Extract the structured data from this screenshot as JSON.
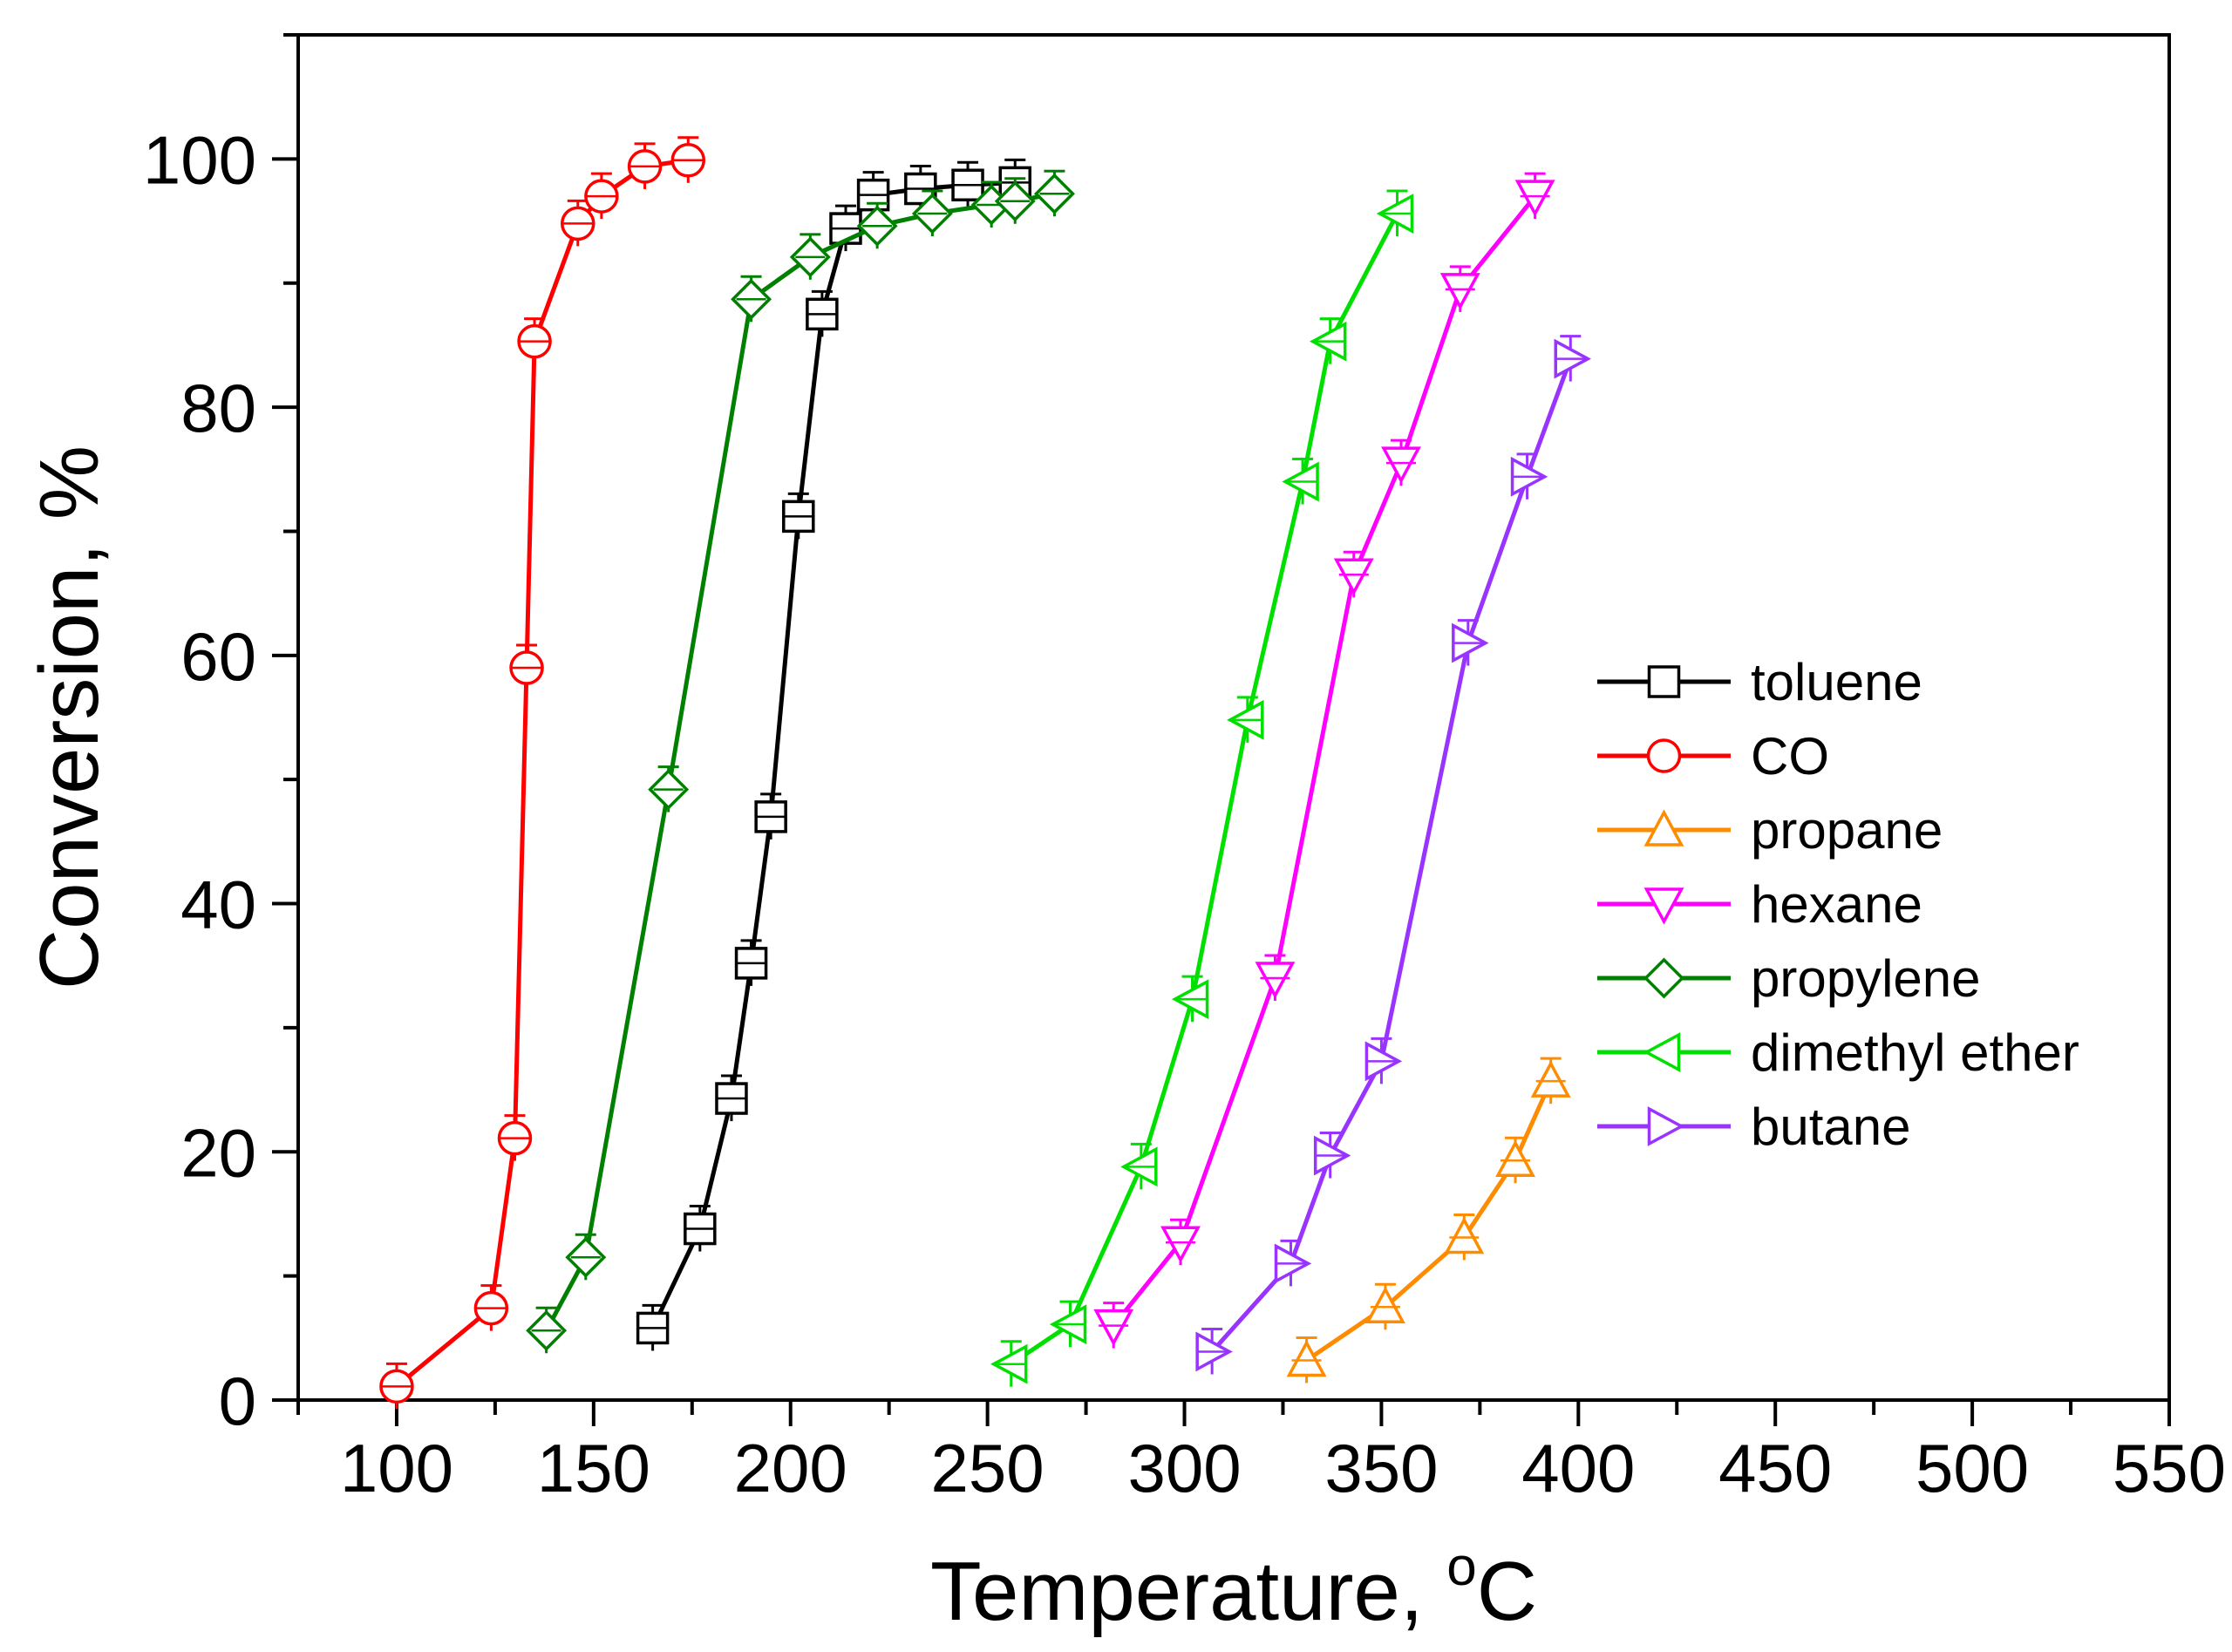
{
  "chart_data": {
    "type": "line",
    "title": "",
    "xlabel": "Temperature, ",
    "xlabel_unit": "C",
    "xlabel_unit_super": "o",
    "ylabel": "Conversion, %",
    "xlim": [
      75,
      550
    ],
    "ylim": [
      0,
      110
    ],
    "x_ticks": [
      100,
      150,
      200,
      250,
      300,
      350,
      400,
      450,
      500,
      550
    ],
    "y_ticks": [
      0,
      20,
      40,
      60,
      80,
      100
    ],
    "grid": false,
    "legend_position": "right-center",
    "series": [
      {
        "name": "toluene",
        "color": "#000000",
        "marker": "square",
        "points": [
          [
            165,
            5.8
          ],
          [
            177,
            13.8
          ],
          [
            185,
            24.3
          ],
          [
            190,
            35.2
          ],
          [
            195,
            47
          ],
          [
            202,
            71.2
          ],
          [
            208,
            87.5
          ],
          [
            214,
            94.4
          ],
          [
            221,
            97.1
          ],
          [
            233,
            97.6
          ],
          [
            245,
            97.9
          ],
          [
            257,
            98.1
          ]
        ]
      },
      {
        "name": "CO",
        "color": "#ff0000",
        "marker": "circle",
        "points": [
          [
            100,
            1.1
          ],
          [
            124,
            7.4
          ],
          [
            130,
            21.1
          ],
          [
            133,
            59
          ],
          [
            135,
            85.3
          ],
          [
            146,
            94.8
          ],
          [
            152,
            97
          ],
          [
            163,
            99.4
          ],
          [
            174,
            99.9
          ]
        ]
      },
      {
        "name": "propane",
        "color": "#ff8c00",
        "marker": "triangle-up",
        "points": [
          [
            331,
            3.2
          ],
          [
            351,
            7.5
          ],
          [
            371,
            13.1
          ],
          [
            384,
            19.3
          ],
          [
            393,
            25.7
          ]
        ]
      },
      {
        "name": "hexane",
        "color": "#ff00ff",
        "marker": "triangle-down",
        "points": [
          [
            282,
            6
          ],
          [
            299,
            12.7
          ],
          [
            323,
            34
          ],
          [
            343,
            66.5
          ],
          [
            355,
            75.5
          ],
          [
            370,
            89.5
          ],
          [
            389,
            97
          ]
        ]
      },
      {
        "name": "propylene",
        "color": "#008000",
        "marker": "diamond",
        "points": [
          [
            138,
            5.6
          ],
          [
            148,
            11.5
          ],
          [
            169,
            49.2
          ],
          [
            190,
            88.7
          ],
          [
            205,
            92.1
          ],
          [
            222,
            94.6
          ],
          [
            236,
            95.6
          ],
          [
            251,
            96.3
          ],
          [
            257,
            96.6
          ],
          [
            267,
            97.2
          ]
        ]
      },
      {
        "name": "dimethyl ether",
        "color": "#00e000",
        "marker": "triangle-left",
        "points": [
          [
            256,
            2.9
          ],
          [
            271,
            6.1
          ],
          [
            289,
            18.8
          ],
          [
            302,
            32.3
          ],
          [
            316,
            54.8
          ],
          [
            330,
            74
          ],
          [
            337,
            85.3
          ],
          [
            354,
            95.6
          ]
        ]
      },
      {
        "name": "butane",
        "color": "#9933ff",
        "marker": "triangle-right",
        "points": [
          [
            307,
            3.9
          ],
          [
            327,
            11
          ],
          [
            337,
            19.7
          ],
          [
            350,
            27.3
          ],
          [
            372,
            61
          ],
          [
            387,
            74.4
          ],
          [
            398,
            83.9
          ]
        ]
      }
    ]
  }
}
